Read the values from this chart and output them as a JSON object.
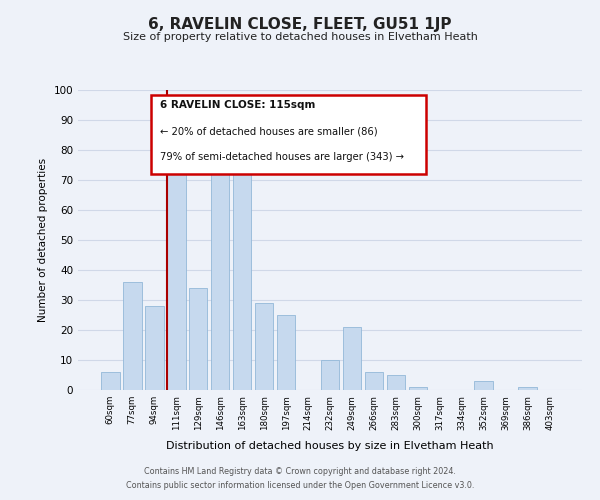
{
  "title": "6, RAVELIN CLOSE, FLEET, GU51 1JP",
  "subtitle": "Size of property relative to detached houses in Elvetham Heath",
  "xlabel": "Distribution of detached houses by size in Elvetham Heath",
  "ylabel": "Number of detached properties",
  "footer_line1": "Contains HM Land Registry data © Crown copyright and database right 2024.",
  "footer_line2": "Contains public sector information licensed under the Open Government Licence v3.0.",
  "bar_labels": [
    "60sqm",
    "77sqm",
    "94sqm",
    "111sqm",
    "129sqm",
    "146sqm",
    "163sqm",
    "180sqm",
    "197sqm",
    "214sqm",
    "232sqm",
    "249sqm",
    "266sqm",
    "283sqm",
    "300sqm",
    "317sqm",
    "334sqm",
    "352sqm",
    "369sqm",
    "386sqm",
    "403sqm"
  ],
  "bar_values": [
    6,
    36,
    28,
    80,
    34,
    78,
    74,
    29,
    25,
    0,
    10,
    21,
    6,
    5,
    1,
    0,
    0,
    3,
    0,
    1,
    0
  ],
  "bar_color": "#c6d9ee",
  "bar_edge_color": "#93b8d8",
  "highlight_bar_index": 3,
  "highlight_line_color": "#aa0000",
  "ylim": [
    0,
    100
  ],
  "yticks": [
    0,
    10,
    20,
    30,
    40,
    50,
    60,
    70,
    80,
    90,
    100
  ],
  "annotation_title": "6 RAVELIN CLOSE: 115sqm",
  "annotation_line1": "← 20% of detached houses are smaller (86)",
  "annotation_line2": "79% of semi-detached houses are larger (343) →",
  "annotation_box_color": "#ffffff",
  "annotation_box_edge_color": "#cc0000",
  "bg_color": "#eef2f9",
  "grid_color": "#d0d8e8"
}
